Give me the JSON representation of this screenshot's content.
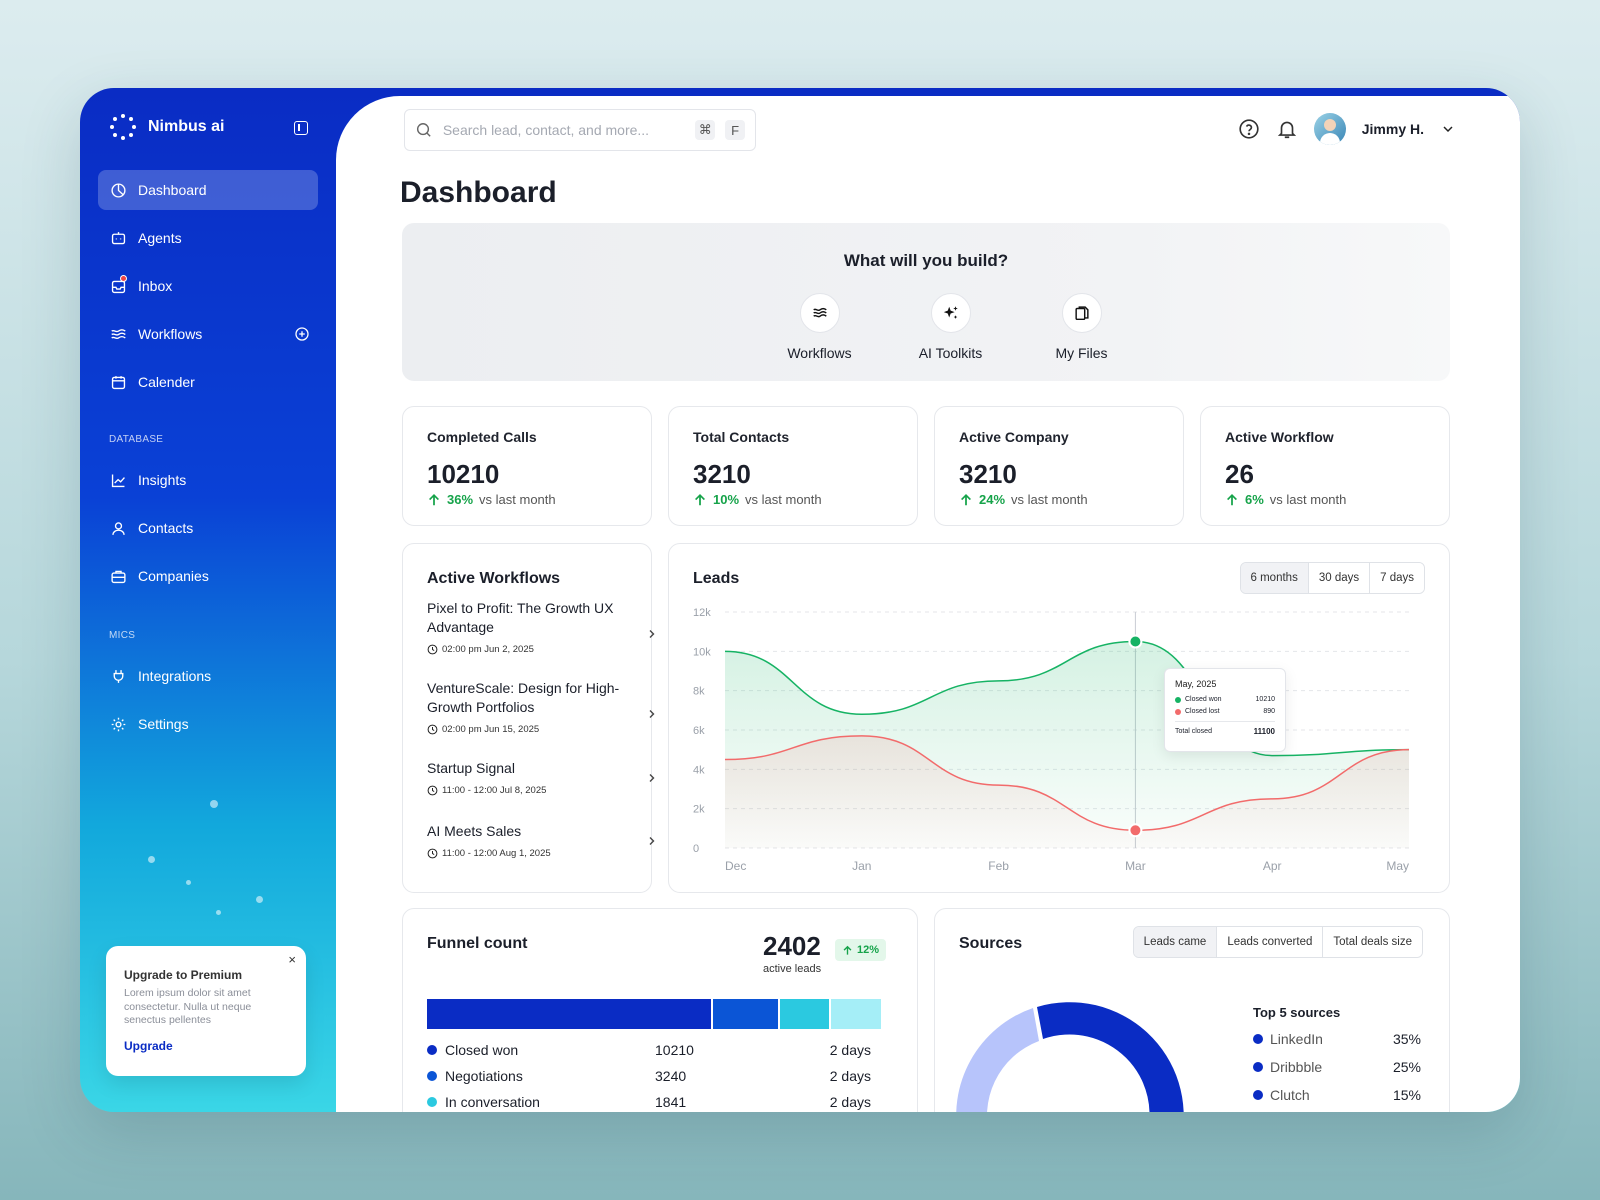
{
  "app": {
    "name": "Nimbus ai"
  },
  "nav": {
    "items": [
      {
        "label": "Dashboard",
        "icon": "dashboard-icon",
        "active": true
      },
      {
        "label": "Agents",
        "icon": "agent-icon"
      },
      {
        "label": "Inbox",
        "icon": "inbox-icon"
      },
      {
        "label": "Workflows",
        "icon": "workflows-icon"
      },
      {
        "label": "Calender",
        "icon": "calendar-icon"
      }
    ],
    "database_label": "DATABASE",
    "database_items": [
      {
        "label": "Insights",
        "icon": "chart-icon"
      },
      {
        "label": "Contacts",
        "icon": "user-icon"
      },
      {
        "label": "Companies",
        "icon": "briefcase-icon"
      }
    ],
    "mics_label": "MICS",
    "mics_items": [
      {
        "label": "Integrations",
        "icon": "plug-icon"
      },
      {
        "label": "Settings",
        "icon": "gear-icon"
      }
    ]
  },
  "upgrade": {
    "close": "×",
    "title": "Upgrade to Premium",
    "body": "Lorem ipsum dolor sit amet consectetur. Nulla ut neque senectus pellentes",
    "link": "Upgrade"
  },
  "search": {
    "placeholder": "Search lead, contact, and more...",
    "key1": "⌘",
    "key2": "F"
  },
  "user": {
    "name": "Jimmy H."
  },
  "page": {
    "title": "Dashboard"
  },
  "build": {
    "title": "What will you build?",
    "options": [
      {
        "label": "Workflows",
        "icon": "waves-icon"
      },
      {
        "label": "AI Toolkits",
        "icon": "sparkle-icon"
      },
      {
        "label": "My Files",
        "icon": "files-icon"
      }
    ]
  },
  "stats": [
    {
      "label": "Completed Calls",
      "value": "10210",
      "change": "36%",
      "suffix": "vs last month"
    },
    {
      "label": "Total Contacts",
      "value": "3210",
      "change": "10%",
      "suffix": "vs last month"
    },
    {
      "label": "Active Company",
      "value": "3210",
      "change": "24%",
      "suffix": "vs last month"
    },
    {
      "label": "Active Workflow",
      "value": "26",
      "change": "6%",
      "suffix": "vs last month"
    }
  ],
  "workflows": {
    "title": "Active Workflows",
    "items": [
      {
        "name": "Pixel to Profit: The Growth UX Advantage",
        "time": "02:00 pm Jun 2, 2025"
      },
      {
        "name": "VentureScale: Design for High-Growth Portfolios",
        "time": "02:00 pm Jun 15, 2025"
      },
      {
        "name": "Startup Signal",
        "time": "11:00 - 12:00 Jul 8, 2025"
      },
      {
        "name": "AI Meets Sales",
        "time": "11:00 - 12:00 Aug 1, 2025"
      }
    ]
  },
  "leads": {
    "title": "Leads",
    "ranges": [
      "6 months",
      "30 days",
      "7 days"
    ],
    "active_range": "6 months",
    "tooltip": {
      "title": "May, 2025",
      "won_label": "Closed won",
      "won_value": "10210",
      "lost_label": "Closed lost",
      "lost_value": "890",
      "total_label": "Total closed",
      "total_value": "11100"
    }
  },
  "chart_data": {
    "type": "line",
    "x": [
      "Dec",
      "Jan",
      "Feb",
      "Mar",
      "Apr",
      "May"
    ],
    "yticks": [
      "0",
      "2k",
      "4k",
      "6k",
      "8k",
      "10k",
      "12k"
    ],
    "ylim": [
      0,
      12000
    ],
    "grid": true,
    "series": [
      {
        "name": "Closed won",
        "color": "#16b364",
        "values": [
          10000,
          6800,
          8500,
          10500,
          4700,
          5000
        ]
      },
      {
        "name": "Closed lost",
        "color": "#f26b6b",
        "values": [
          4500,
          5700,
          3200,
          900,
          2500,
          5000
        ]
      }
    ],
    "highlight_index": 3
  },
  "funnel": {
    "title": "Funnel count",
    "value": "2402",
    "badge": "12%",
    "sub": "active leads",
    "segments": [
      {
        "color": "#0a2cc4",
        "share": 0.625
      },
      {
        "color": "#0b55d6",
        "share": 0.148
      },
      {
        "color": "#2bc9e0",
        "share": 0.113
      },
      {
        "color": "#a5eef7",
        "share": 0.114
      }
    ],
    "rows": [
      {
        "name": "Closed won",
        "value": "10210",
        "days": "2 days",
        "color": "#0a2cc4"
      },
      {
        "name": "Negotiations",
        "value": "3240",
        "days": "2 days",
        "color": "#0b55d6"
      },
      {
        "name": "In conversation",
        "value": "1841",
        "days": "2 days",
        "color": "#2bc9e0"
      }
    ]
  },
  "sources": {
    "title": "Sources",
    "tabs": [
      "Leads came",
      "Leads converted",
      "Total deals size"
    ],
    "active_tab": "Leads came",
    "top_label": "Top 5 sources",
    "items": [
      {
        "name": "LinkedIn",
        "pct": "35%"
      },
      {
        "name": "Dribbble",
        "pct": "25%"
      },
      {
        "name": "Clutch",
        "pct": "15%"
      }
    ]
  }
}
